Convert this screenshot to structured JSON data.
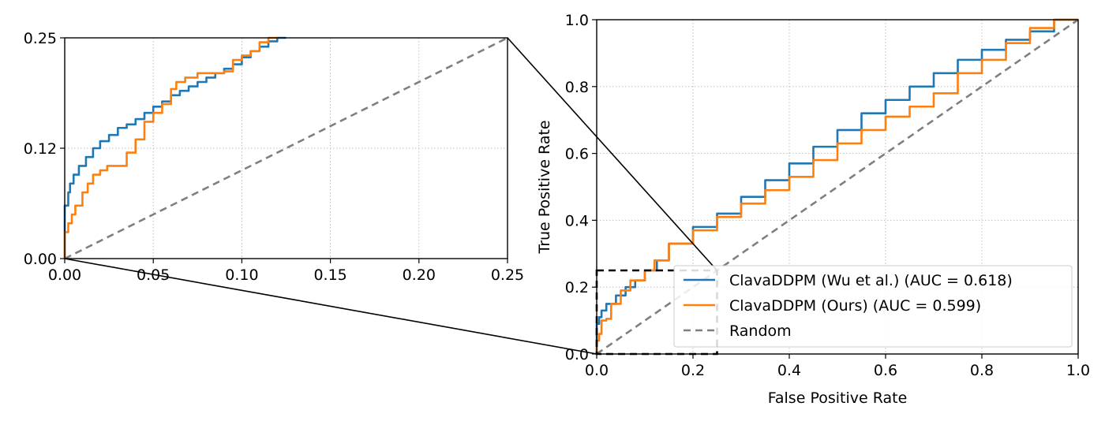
{
  "chart_data": [
    {
      "type": "line",
      "panel": "zoom-inset",
      "xlim": [
        0.0,
        0.25
      ],
      "ylim": [
        0.0,
        0.25
      ],
      "xticks": [
        "0.00",
        "0.05",
        "0.10",
        "0.15",
        "0.20",
        "0.25"
      ],
      "xtick_values": [
        0.0,
        0.05,
        0.1,
        0.15,
        0.2,
        0.25
      ],
      "yticks": [
        "0.00",
        "0.12",
        "0.25"
      ],
      "ytick_values": [
        0.0,
        0.125,
        0.25
      ],
      "grid": true,
      "series": [
        {
          "name": "ClavaDDPM (Wu et al.)",
          "color": "#1f77b4",
          "x": [
            0,
            0,
            0.002,
            0.003,
            0.005,
            0.008,
            0.012,
            0.016,
            0.02,
            0.025,
            0.03,
            0.035,
            0.04,
            0.045,
            0.05,
            0.055,
            0.06,
            0.065,
            0.07,
            0.075,
            0.08,
            0.085,
            0.09,
            0.095,
            0.1,
            0.105,
            0.11,
            0.115,
            0.12,
            0.125
          ],
          "y": [
            0,
            0.025,
            0.06,
            0.075,
            0.085,
            0.095,
            0.105,
            0.115,
            0.125,
            0.133,
            0.14,
            0.148,
            0.152,
            0.158,
            0.165,
            0.172,
            0.178,
            0.185,
            0.19,
            0.195,
            0.2,
            0.205,
            0.21,
            0.215,
            0.22,
            0.228,
            0.235,
            0.24,
            0.246,
            0.25
          ]
        },
        {
          "name": "ClavaDDPM (Ours)",
          "color": "#ff7f0e",
          "x": [
            0,
            0.002,
            0.004,
            0.006,
            0.01,
            0.013,
            0.016,
            0.02,
            0.024,
            0.028,
            0.035,
            0.04,
            0.045,
            0.05,
            0.055,
            0.06,
            0.063,
            0.068,
            0.075,
            0.085,
            0.09,
            0.095,
            0.1,
            0.105,
            0.11,
            0.115,
            0.12
          ],
          "y": [
            0,
            0.03,
            0.04,
            0.05,
            0.06,
            0.075,
            0.085,
            0.095,
            0.1,
            0.105,
            0.105,
            0.12,
            0.135,
            0.155,
            0.165,
            0.175,
            0.192,
            0.2,
            0.205,
            0.21,
            0.21,
            0.212,
            0.225,
            0.23,
            0.235,
            0.245,
            0.25
          ]
        },
        {
          "name": "Random",
          "color": "#7f7f7f",
          "dashed": true,
          "x": [
            0,
            0.25
          ],
          "y": [
            0,
            0.25
          ]
        }
      ]
    },
    {
      "type": "line",
      "panel": "main-roc",
      "xlabel": "False Positive Rate",
      "ylabel": "True Positive Rate",
      "xlim": [
        0.0,
        1.0
      ],
      "ylim": [
        0.0,
        1.0
      ],
      "xticks": [
        "0.0",
        "0.2",
        "0.4",
        "0.6",
        "0.8",
        "1.0"
      ],
      "xtick_values": [
        0.0,
        0.2,
        0.4,
        0.6,
        0.8,
        1.0
      ],
      "yticks": [
        "0.0",
        "0.2",
        "0.4",
        "0.6",
        "0.8",
        "1.0"
      ],
      "ytick_values": [
        0.0,
        0.2,
        0.4,
        0.6,
        0.8,
        1.0
      ],
      "grid": true,
      "zoom_region": {
        "x": [
          0,
          0.25
        ],
        "y": [
          0,
          0.25
        ]
      },
      "legend_position": "lower-right",
      "series": [
        {
          "name": "ClavaDDPM (Wu et al.)",
          "legend": "ClavaDDPM (Wu et al.) (AUC = 0.618)",
          "auc": 0.618,
          "color": "#1f77b4",
          "x": [
            0,
            0,
            0.005,
            0.01,
            0.02,
            0.04,
            0.06,
            0.08,
            0.1,
            0.125,
            0.15,
            0.2,
            0.25,
            0.3,
            0.35,
            0.4,
            0.45,
            0.5,
            0.55,
            0.6,
            0.65,
            0.7,
            0.75,
            0.8,
            0.85,
            0.9,
            0.95,
            1.0
          ],
          "y": [
            0,
            0.06,
            0.09,
            0.11,
            0.13,
            0.15,
            0.175,
            0.2,
            0.22,
            0.25,
            0.28,
            0.33,
            0.38,
            0.42,
            0.47,
            0.52,
            0.57,
            0.62,
            0.67,
            0.72,
            0.76,
            0.8,
            0.84,
            0.88,
            0.91,
            0.94,
            0.965,
            1.0
          ]
        },
        {
          "name": "ClavaDDPM (Ours)",
          "legend": "ClavaDDPM (Ours) (AUC = 0.599)",
          "auc": 0.599,
          "color": "#ff7f0e",
          "x": [
            0,
            0.005,
            0.01,
            0.02,
            0.03,
            0.05,
            0.07,
            0.1,
            0.12,
            0.15,
            0.2,
            0.25,
            0.3,
            0.35,
            0.4,
            0.45,
            0.5,
            0.55,
            0.6,
            0.65,
            0.7,
            0.75,
            0.8,
            0.85,
            0.9,
            0.95,
            1.0
          ],
          "y": [
            0,
            0.04,
            0.06,
            0.1,
            0.105,
            0.15,
            0.19,
            0.22,
            0.25,
            0.28,
            0.33,
            0.37,
            0.41,
            0.45,
            0.49,
            0.53,
            0.58,
            0.63,
            0.67,
            0.71,
            0.74,
            0.78,
            0.84,
            0.88,
            0.93,
            0.975,
            1.0
          ]
        },
        {
          "name": "Random",
          "legend": "Random",
          "color": "#7f7f7f",
          "dashed": true,
          "x": [
            0,
            1
          ],
          "y": [
            0,
            1
          ]
        }
      ]
    }
  ]
}
